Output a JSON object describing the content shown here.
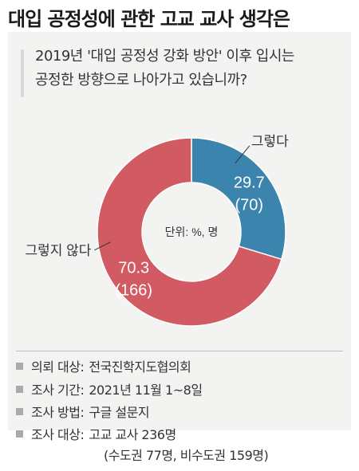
{
  "title": "대입 공정성에 관한 고교 교사 생각은",
  "question": {
    "line1": "2019년 '대입 공정성 강화 방안' 이후 입시는",
    "line2": "공정한 방향으로 나아가고 있습니까?"
  },
  "chart_data": {
    "type": "pie",
    "unit_label": "단위: %, 명",
    "slices": [
      {
        "label": "그렇다",
        "percent": 29.7,
        "count": 70,
        "percent_text": "29.7",
        "count_text": "(70)",
        "color": "#3a84ad"
      },
      {
        "label": "그렇지 않다",
        "percent": 70.3,
        "count": 166,
        "percent_text": "70.3",
        "count_text": "(166)",
        "color": "#d15a63"
      }
    ]
  },
  "source": {
    "rows": [
      {
        "label": "의뢰 대상",
        "value": "전국진학지도협의회"
      },
      {
        "label": "조사 기간",
        "value": "2021년 11월 1~8일"
      },
      {
        "label": "조사 방법",
        "value": "구글 설문지"
      },
      {
        "label": "조사 대상",
        "value": "고교 교사 236명"
      }
    ],
    "sub": "(수도권 77명, 비수도권 159명)"
  },
  "colors": {
    "panel": "#f3f3f1",
    "accent_bar": "#d9d9d9",
    "bullet": "#aaaaaa"
  }
}
